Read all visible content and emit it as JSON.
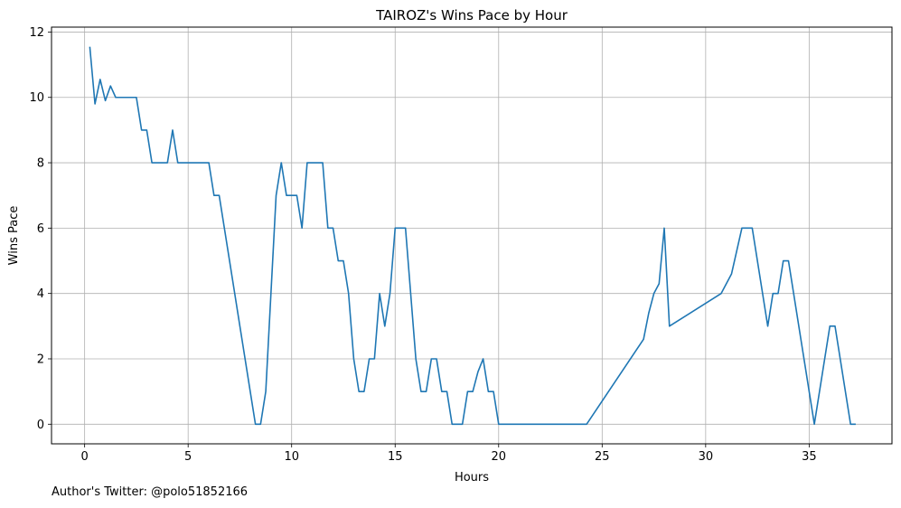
{
  "chart_data": {
    "type": "line",
    "title": "TAIROZ's Wins Pace by Hour",
    "xlabel": "Hours",
    "ylabel": "Wins Pace",
    "xlim": [
      -1.6,
      39.0
    ],
    "ylim": [
      -0.6,
      12.15
    ],
    "xticks": [
      0,
      5,
      10,
      15,
      20,
      25,
      30,
      35
    ],
    "yticks": [
      0,
      2,
      4,
      6,
      8,
      10,
      12
    ],
    "grid": true,
    "series": [
      {
        "color": "#1f77b4",
        "x": [
          0.25,
          0.5,
          0.75,
          1.0,
          1.25,
          1.5,
          1.75,
          2.0,
          2.25,
          2.5,
          2.75,
          3.0,
          3.25,
          3.5,
          3.75,
          4.0,
          4.25,
          4.5,
          4.75,
          5.0,
          5.25,
          5.5,
          5.75,
          6.0,
          6.25,
          6.5,
          7.0,
          7.5,
          8.0,
          8.25,
          8.5,
          8.75,
          9.0,
          9.25,
          9.5,
          9.75,
          10.0,
          10.25,
          10.5,
          10.75,
          11.0,
          11.25,
          11.5,
          11.75,
          12.0,
          12.25,
          12.5,
          12.75,
          13.0,
          13.25,
          13.5,
          13.75,
          14.0,
          14.25,
          14.5,
          14.75,
          15.0,
          15.25,
          15.5,
          15.75,
          16.0,
          16.25,
          16.5,
          16.75,
          17.0,
          17.25,
          17.5,
          17.75,
          18.0,
          18.25,
          18.5,
          18.75,
          19.0,
          19.25,
          19.5,
          19.75,
          20.0,
          20.25,
          24.25,
          27.0,
          27.25,
          27.5,
          27.75,
          28.0,
          28.25,
          30.75,
          31.25,
          31.5,
          31.75,
          32.0,
          32.25,
          33.0,
          33.25,
          33.5,
          33.75,
          34.0,
          35.25,
          36.0,
          36.25,
          37.0,
          37.25
        ],
        "y": [
          11.55,
          9.8,
          10.55,
          9.9,
          10.35,
          10.0,
          10.0,
          10.0,
          10.0,
          10.0,
          9.0,
          9.0,
          8.0,
          8.0,
          8.0,
          8.0,
          9.0,
          8.0,
          8.0,
          8.0,
          8.0,
          8.0,
          8.0,
          8.0,
          7.0,
          7.0,
          5.0,
          3.0,
          1.0,
          0.0,
          0.0,
          1.0,
          4.0,
          7.0,
          8.0,
          7.0,
          7.0,
          7.0,
          6.0,
          8.0,
          8.0,
          8.0,
          8.0,
          6.0,
          6.0,
          5.0,
          5.0,
          4.0,
          2.0,
          1.0,
          1.0,
          2.0,
          2.0,
          4.0,
          3.0,
          4.0,
          6.0,
          6.0,
          6.0,
          4.0,
          2.0,
          1.0,
          1.0,
          2.0,
          2.0,
          1.0,
          1.0,
          0.0,
          0.0,
          0.0,
          1.0,
          1.0,
          1.6,
          2.0,
          1.0,
          1.0,
          0.0,
          0.0,
          0.0,
          2.6,
          3.4,
          4.0,
          4.3,
          6.0,
          3.0,
          4.0,
          4.6,
          5.3,
          6.0,
          6.0,
          6.0,
          3.0,
          4.0,
          4.0,
          5.0,
          5.0,
          0.0,
          3.0,
          3.0,
          0.0,
          0.0
        ]
      }
    ]
  },
  "footnote": "Author's Twitter: @polo51852166"
}
